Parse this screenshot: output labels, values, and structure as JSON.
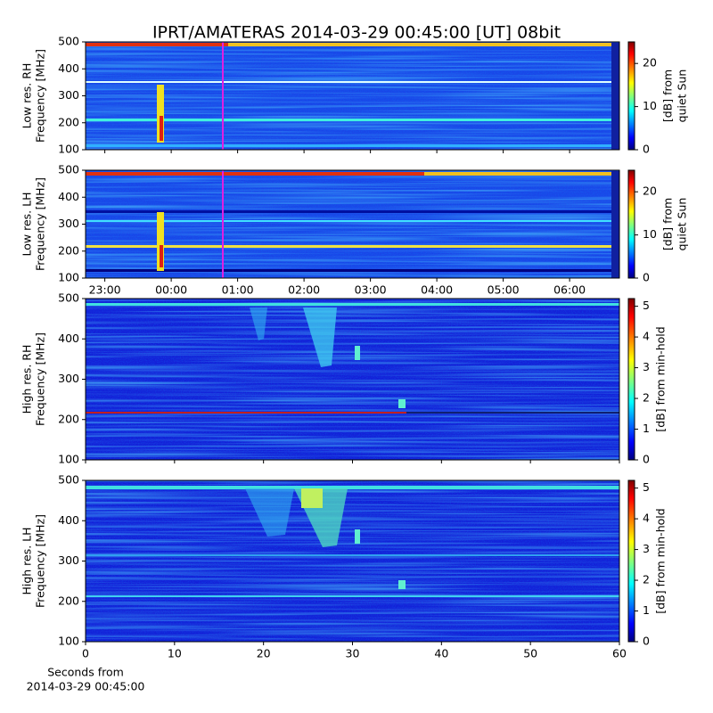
{
  "title": "IPRT/AMATERAS 2014-03-29 00:45:00 [UT]   08bit",
  "chart_data": [
    {
      "type": "heatmap",
      "ylabel": [
        "Low res. RH",
        "Frequency [MHz]"
      ],
      "ylim": [
        100,
        500
      ],
      "yticks": [
        100,
        200,
        300,
        400,
        500
      ],
      "xlim": [
        -1.29,
        6.75
      ],
      "xticks": [
        {
          "value": -1,
          "label": "23:00"
        },
        {
          "value": 0,
          "label": "00:00"
        },
        {
          "value": 1,
          "label": "01:00"
        },
        {
          "value": 2,
          "label": "02:00"
        },
        {
          "value": 3,
          "label": "03:00"
        },
        {
          "value": 4,
          "label": "04:00"
        },
        {
          "value": 5,
          "label": "05:00"
        },
        {
          "value": 6,
          "label": "06:00"
        }
      ],
      "show_xlabels": false,
      "colorbar": {
        "label": [
          "[dB] from",
          "quiet Sun"
        ],
        "lim": [
          0,
          25
        ],
        "ticks": [
          0,
          10,
          20
        ]
      }
    },
    {
      "type": "heatmap",
      "ylabel": [
        "Low res. LH",
        "Frequency [MHz]"
      ],
      "ylim": [
        100,
        500
      ],
      "yticks": [
        100,
        200,
        300,
        400,
        500
      ],
      "xlim": [
        -1.29,
        6.75
      ],
      "xticks": [
        {
          "value": -1,
          "label": "23:00"
        },
        {
          "value": 0,
          "label": "00:00"
        },
        {
          "value": 1,
          "label": "01:00"
        },
        {
          "value": 2,
          "label": "02:00"
        },
        {
          "value": 3,
          "label": "03:00"
        },
        {
          "value": 4,
          "label": "04:00"
        },
        {
          "value": 5,
          "label": "05:00"
        },
        {
          "value": 6,
          "label": "06:00"
        }
      ],
      "show_xlabels": true,
      "colorbar": {
        "label": [
          "[dB] from",
          "quiet Sun"
        ],
        "lim": [
          0,
          25
        ],
        "ticks": [
          0,
          10,
          20
        ]
      }
    },
    {
      "type": "heatmap",
      "ylabel": [
        "High res. RH",
        "Frequency [MHz]"
      ],
      "ylim": [
        100,
        500
      ],
      "yticks": [
        100,
        200,
        300,
        400,
        500
      ],
      "xlim": [
        0,
        60
      ],
      "xticks": [
        0,
        10,
        20,
        30,
        40,
        50,
        60
      ],
      "show_xlabels": false,
      "colorbar": {
        "label": [
          "[dB] from min-hold"
        ],
        "lim": [
          0,
          5.25
        ],
        "ticks": [
          0,
          1,
          2,
          3,
          4,
          5
        ]
      }
    },
    {
      "type": "heatmap",
      "ylabel": [
        "High res. LH",
        "Frequency [MHz]"
      ],
      "ylim": [
        100,
        500
      ],
      "yticks": [
        100,
        200,
        300,
        400,
        500
      ],
      "xlim": [
        0,
        60
      ],
      "xticks": [
        0,
        10,
        20,
        30,
        40,
        50,
        60
      ],
      "show_xlabels": true,
      "xlabel": [
        "Seconds from",
        "2014-03-29 00:45:00"
      ],
      "colorbar": {
        "label": [
          "[dB] from min-hold"
        ],
        "lim": [
          0,
          5.25
        ],
        "ticks": [
          0,
          1,
          2,
          3,
          4,
          5
        ]
      }
    }
  ]
}
